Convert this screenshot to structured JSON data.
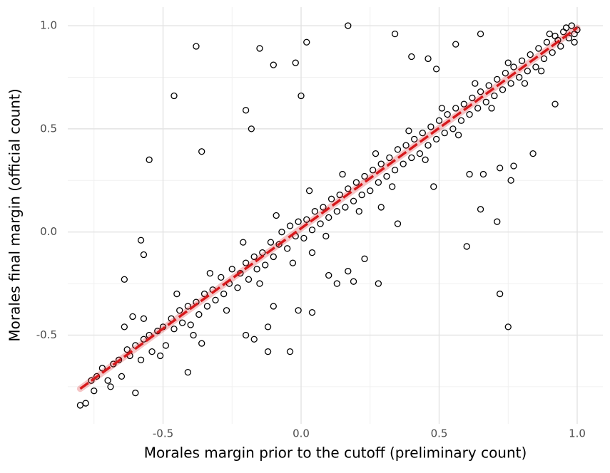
{
  "chart_data": {
    "type": "scatter",
    "x_label": "Morales margin prior to the cutoff (preliminary count)",
    "y_label": "Morales final margin (official count)",
    "xlim": [
      -0.845,
      1.093
    ],
    "ylim": [
      -0.93,
      1.09
    ],
    "xticks": [
      -0.5,
      {
        "value": 0,
        "label": "0.0"
      },
      0.5,
      {
        "value": 1,
        "label": "1.0"
      }
    ],
    "yticks": [
      -0.5,
      {
        "value": 0,
        "label": "0.0"
      },
      0.5,
      {
        "value": 1,
        "label": "1.0"
      }
    ],
    "x_minor_grid": [
      -0.75,
      -0.25,
      0.25,
      0.75
    ],
    "y_minor_grid": [
      -0.75,
      -0.25,
      0.25,
      0.75
    ],
    "grid": true,
    "color": "#000000",
    "x": [
      -0.38,
      -0.46,
      -0.55,
      -0.36,
      -0.58,
      -0.57,
      -0.64,
      -0.2,
      -0.18,
      -0.15,
      -0.1,
      -0.02,
      0.02,
      0.0,
      0.17,
      0.34,
      0.4,
      0.46,
      0.49,
      0.56,
      0.65,
      0.72,
      0.76,
      0.77,
      0.84,
      0.71,
      0.65,
      0.72,
      0.75,
      0.6,
      0.48,
      0.66,
      0.61,
      0.1,
      0.13,
      0.19,
      0.28,
      0.23,
      0.29,
      0.35,
      0.17,
      0.04,
      -0.01,
      0.04,
      -0.1,
      -0.04,
      -0.12,
      -0.12,
      -0.2,
      -0.17,
      -0.36,
      -0.41,
      -0.6,
      -0.78,
      -0.8,
      0.92,
      0.93,
      0.99,
      -0.76,
      -0.74,
      -0.72,
      -0.7,
      -0.68,
      -0.66,
      -0.65,
      -0.63,
      -0.62,
      -0.6,
      -0.58,
      -0.57,
      -0.55,
      -0.54,
      -0.52,
      -0.5,
      -0.49,
      -0.47,
      -0.46,
      -0.44,
      -0.43,
      -0.41,
      -0.4,
      -0.38,
      -0.37,
      -0.35,
      -0.34,
      -0.32,
      -0.31,
      -0.29,
      -0.28,
      -0.26,
      -0.25,
      -0.23,
      -0.22,
      -0.2,
      -0.19,
      -0.17,
      -0.16,
      -0.14,
      -0.13,
      -0.11,
      -0.1,
      -0.08,
      -0.07,
      -0.05,
      -0.04,
      -0.02,
      -0.01,
      0.01,
      0.02,
      0.04,
      0.05,
      0.07,
      0.08,
      0.1,
      0.11,
      0.13,
      0.14,
      0.16,
      0.17,
      0.19,
      0.2,
      0.22,
      0.23,
      0.25,
      0.26,
      0.28,
      0.29,
      0.31,
      0.32,
      0.34,
      0.35,
      0.37,
      0.38,
      0.4,
      0.41,
      0.43,
      0.44,
      0.46,
      0.47,
      0.49,
      0.5,
      0.52,
      0.53,
      0.55,
      0.56,
      0.58,
      0.59,
      0.61,
      0.62,
      0.64,
      0.65,
      0.67,
      0.68,
      0.7,
      0.71,
      0.73,
      0.74,
      0.76,
      0.77,
      0.79,
      0.8,
      0.82,
      0.83,
      0.85,
      0.86,
      0.88,
      0.89,
      0.91,
      0.92,
      0.94,
      0.95,
      0.97,
      0.98,
      1.0,
      0.99,
      0.96,
      0.9,
      0.87,
      0.81,
      0.75,
      0.69,
      0.63,
      0.57,
      0.51,
      0.45,
      0.39,
      0.33,
      0.27,
      0.21,
      0.15,
      0.09,
      0.03,
      -0.03,
      -0.09,
      -0.15,
      -0.21,
      -0.27,
      -0.33,
      -0.39,
      -0.45,
      -0.51,
      -0.57,
      -0.61,
      -0.64,
      -0.69,
      -0.75
    ],
    "values": [
      0.9,
      0.66,
      0.35,
      0.39,
      -0.04,
      -0.11,
      -0.23,
      0.59,
      0.5,
      0.89,
      0.81,
      0.82,
      0.92,
      0.66,
      1.0,
      0.96,
      0.85,
      0.84,
      0.79,
      0.91,
      0.96,
      0.31,
      0.25,
      0.32,
      0.38,
      0.05,
      0.11,
      -0.3,
      -0.46,
      -0.07,
      0.22,
      0.28,
      0.28,
      -0.21,
      -0.25,
      -0.24,
      -0.25,
      -0.13,
      0.12,
      0.04,
      -0.19,
      -0.1,
      -0.38,
      -0.39,
      -0.36,
      -0.58,
      -0.58,
      -0.46,
      -0.5,
      -0.52,
      -0.54,
      -0.68,
      -0.78,
      -0.83,
      -0.84,
      0.62,
      0.93,
      0.92,
      -0.72,
      -0.7,
      -0.66,
      -0.72,
      -0.64,
      -0.62,
      -0.7,
      -0.57,
      -0.6,
      -0.55,
      -0.62,
      -0.52,
      -0.5,
      -0.58,
      -0.48,
      -0.46,
      -0.55,
      -0.42,
      -0.47,
      -0.38,
      -0.44,
      -0.36,
      -0.45,
      -0.34,
      -0.4,
      -0.3,
      -0.36,
      -0.28,
      -0.33,
      -0.22,
      -0.3,
      -0.25,
      -0.18,
      -0.27,
      -0.2,
      -0.15,
      -0.23,
      -0.12,
      -0.18,
      -0.1,
      -0.16,
      -0.05,
      -0.12,
      -0.06,
      0.0,
      -0.08,
      0.03,
      -0.02,
      0.05,
      -0.03,
      0.06,
      0.01,
      0.1,
      0.04,
      0.12,
      0.07,
      0.16,
      0.1,
      0.18,
      0.12,
      0.21,
      0.15,
      0.24,
      0.18,
      0.27,
      0.2,
      0.3,
      0.24,
      0.33,
      0.27,
      0.36,
      0.3,
      0.4,
      0.33,
      0.42,
      0.36,
      0.45,
      0.38,
      0.48,
      0.42,
      0.51,
      0.45,
      0.54,
      0.48,
      0.57,
      0.5,
      0.6,
      0.54,
      0.62,
      0.57,
      0.65,
      0.6,
      0.68,
      0.63,
      0.71,
      0.66,
      0.74,
      0.69,
      0.77,
      0.72,
      0.8,
      0.75,
      0.83,
      0.78,
      0.86,
      0.8,
      0.89,
      0.84,
      0.92,
      0.87,
      0.95,
      0.9,
      0.97,
      0.94,
      1.0,
      0.98,
      0.96,
      0.99,
      0.96,
      0.78,
      0.72,
      0.82,
      0.6,
      0.72,
      0.47,
      0.6,
      0.35,
      0.49,
      0.22,
      0.38,
      0.1,
      0.28,
      -0.02,
      0.2,
      -0.15,
      0.08,
      -0.25,
      -0.05,
      -0.38,
      -0.2,
      -0.5,
      -0.3,
      -0.6,
      -0.42,
      -0.41,
      -0.46,
      -0.75,
      -0.77
    ],
    "fit_line": {
      "x": [
        -0.8,
        1.0
      ],
      "y": [
        -0.76,
        0.99
      ],
      "color": "#d7191c"
    }
  }
}
